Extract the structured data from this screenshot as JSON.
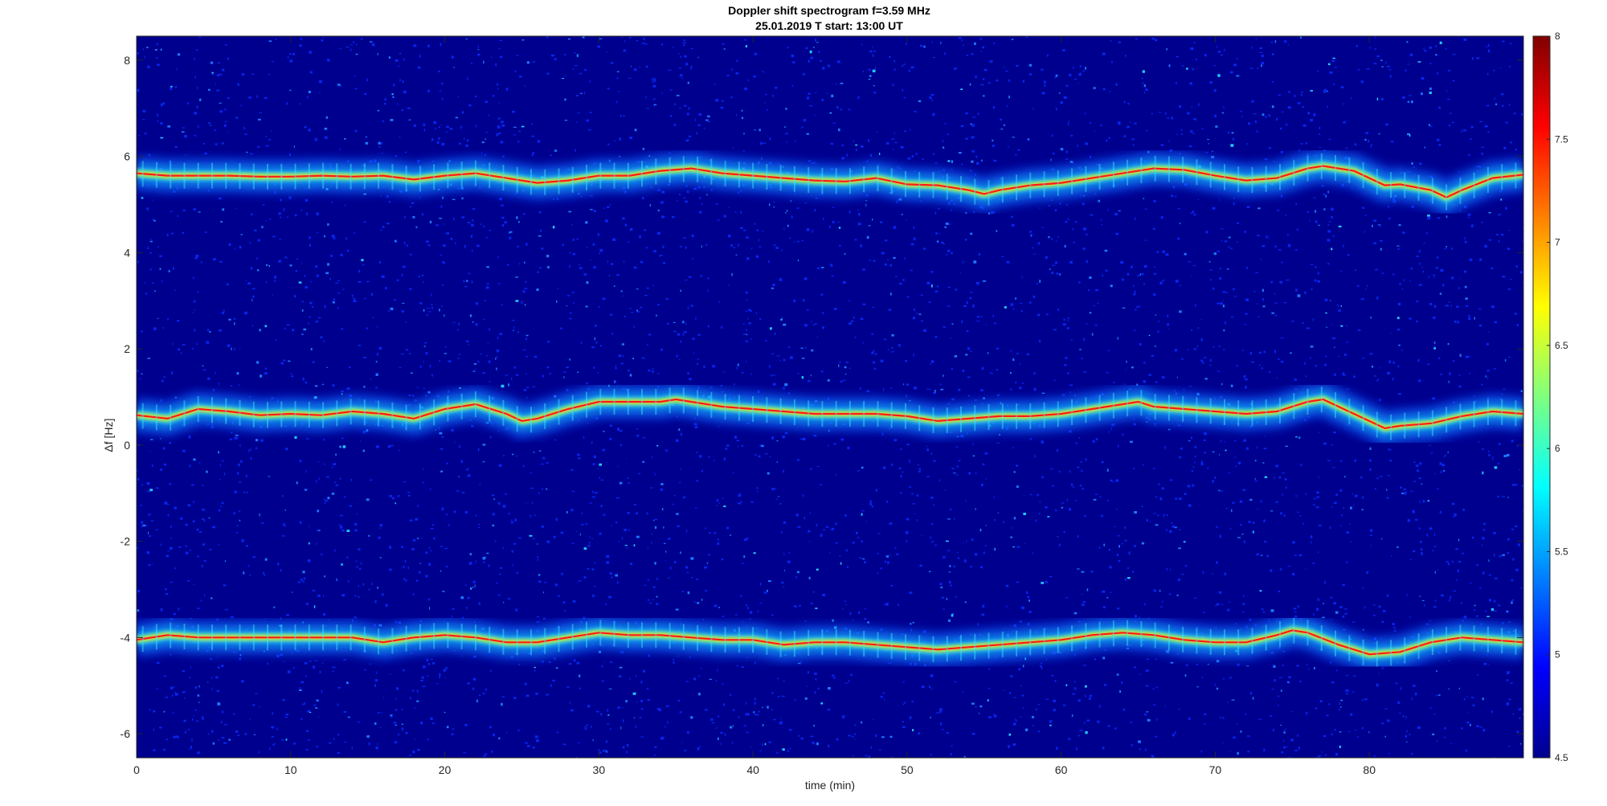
{
  "chart_data": {
    "type": "heatmap",
    "title": "Doppler shift spectrogram f=3.59 MHz",
    "subtitle": "25.01.2019   T start: 13:00 UT",
    "xlabel": "time (min)",
    "ylabel": "Δf [Hz]",
    "xlim": [
      0,
      90
    ],
    "ylim": [
      -6.5,
      8.5
    ],
    "xticks": [
      0,
      10,
      20,
      30,
      40,
      50,
      60,
      70,
      80
    ],
    "yticks": [
      -6,
      -4,
      -2,
      0,
      2,
      4,
      6,
      8
    ],
    "colormap": "jet",
    "background_color": "#00008f",
    "colorbar": {
      "range": [
        4.5,
        8
      ],
      "ticks": [
        "4.5",
        "5",
        "5.5",
        "6",
        "6.5",
        "7",
        "7.5",
        "8"
      ],
      "position": "right"
    },
    "grid": false,
    "series": [
      {
        "x": [
          0,
          2,
          4,
          6,
          8,
          10,
          12,
          14,
          16,
          18,
          20,
          22,
          24,
          26,
          28,
          30,
          32,
          34,
          36,
          38,
          40,
          42,
          44,
          46,
          48,
          50,
          52,
          54,
          55,
          56,
          58,
          60,
          62,
          64,
          66,
          68,
          70,
          72,
          74,
          76,
          77,
          79,
          80,
          81,
          82,
          84,
          85,
          86,
          88,
          90
        ],
        "values": [
          5.65,
          5.6,
          5.6,
          5.6,
          5.58,
          5.58,
          5.6,
          5.58,
          5.6,
          5.52,
          5.6,
          5.65,
          5.55,
          5.45,
          5.5,
          5.6,
          5.6,
          5.7,
          5.75,
          5.65,
          5.6,
          5.55,
          5.5,
          5.48,
          5.55,
          5.42,
          5.4,
          5.3,
          5.22,
          5.3,
          5.4,
          5.45,
          5.55,
          5.65,
          5.75,
          5.72,
          5.6,
          5.5,
          5.55,
          5.75,
          5.8,
          5.7,
          5.55,
          5.4,
          5.42,
          5.3,
          5.15,
          5.3,
          5.55,
          5.62
        ]
      },
      {
        "x": [
          0,
          2,
          4,
          6,
          8,
          10,
          12,
          14,
          16,
          18,
          20,
          22,
          24,
          25,
          26,
          28,
          30,
          32,
          34,
          35,
          36,
          38,
          40,
          42,
          44,
          46,
          48,
          50,
          52,
          54,
          56,
          58,
          60,
          62,
          64,
          65,
          66,
          68,
          70,
          72,
          74,
          76,
          77,
          78,
          80,
          81,
          82,
          84,
          86,
          88,
          90
        ],
        "values": [
          0.62,
          0.55,
          0.75,
          0.7,
          0.62,
          0.65,
          0.62,
          0.7,
          0.65,
          0.55,
          0.75,
          0.85,
          0.65,
          0.5,
          0.55,
          0.75,
          0.9,
          0.9,
          0.9,
          0.95,
          0.9,
          0.8,
          0.75,
          0.7,
          0.65,
          0.65,
          0.65,
          0.6,
          0.5,
          0.55,
          0.6,
          0.6,
          0.65,
          0.75,
          0.85,
          0.9,
          0.8,
          0.75,
          0.7,
          0.65,
          0.7,
          0.9,
          0.95,
          0.8,
          0.5,
          0.35,
          0.4,
          0.45,
          0.6,
          0.7,
          0.65
        ]
      },
      {
        "x": [
          0,
          2,
          4,
          6,
          8,
          10,
          12,
          14,
          16,
          18,
          20,
          22,
          24,
          26,
          28,
          30,
          32,
          34,
          36,
          38,
          40,
          42,
          44,
          46,
          48,
          50,
          52,
          54,
          56,
          58,
          60,
          62,
          64,
          66,
          68,
          70,
          72,
          74,
          75,
          76,
          78,
          80,
          82,
          84,
          86,
          88,
          90
        ],
        "values": [
          -4.05,
          -3.95,
          -4.0,
          -4.0,
          -4.0,
          -4.0,
          -4.0,
          -4.0,
          -4.1,
          -4.0,
          -3.95,
          -4.0,
          -4.1,
          -4.1,
          -4.0,
          -3.9,
          -3.95,
          -3.95,
          -4.0,
          -4.05,
          -4.05,
          -4.15,
          -4.1,
          -4.1,
          -4.15,
          -4.2,
          -4.25,
          -4.2,
          -4.15,
          -4.1,
          -4.05,
          -3.95,
          -3.9,
          -3.95,
          -4.05,
          -4.1,
          -4.1,
          -3.95,
          -3.85,
          -3.9,
          -4.15,
          -4.35,
          -4.3,
          -4.1,
          -4.0,
          -4.05,
          -4.1
        ]
      }
    ]
  }
}
